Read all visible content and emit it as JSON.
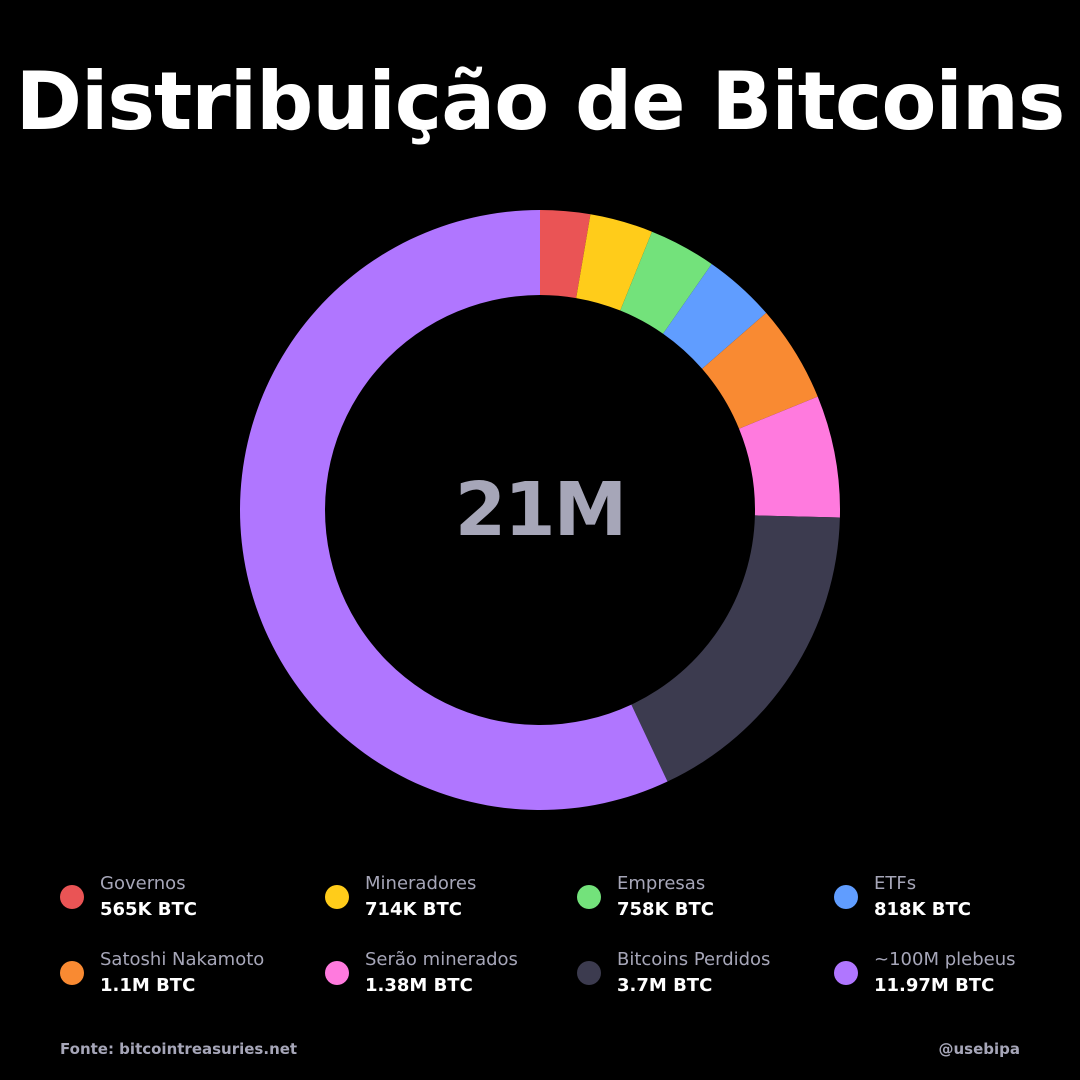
{
  "chart_data": {
    "type": "pie",
    "title": "Distribuição de Bitcoins",
    "center_label": "21M",
    "center_color": "#a6a6b8",
    "slices": [
      {
        "name": "Governos",
        "value": 565000,
        "label": "565K BTC",
        "color": "#ea5455"
      },
      {
        "name": "Mineradores",
        "value": 714000,
        "label": "714K BTC",
        "color": "#ffcc1a"
      },
      {
        "name": "Empresas",
        "value": 758000,
        "label": "758K BTC",
        "color": "#73e27b"
      },
      {
        "name": "ETFs",
        "value": 818000,
        "label": "818K BTC",
        "color": "#609dff"
      },
      {
        "name": "Satoshi Nakamoto",
        "value": 1100000,
        "label": "1.1M BTC",
        "color": "#f98a32"
      },
      {
        "name": "Serão minerados",
        "value": 1380000,
        "label": "1.38M BTC",
        "color": "#ff7ade"
      },
      {
        "name": "Bitcoins Perdidos",
        "value": 3700000,
        "label": "3.7M BTC",
        "color": "#3c3b4f"
      },
      {
        "name": "~100M plebeus",
        "value": 11970000,
        "label": "11.97M BTC",
        "color": "#b076ff"
      }
    ]
  },
  "footer": {
    "source": "Fonte: bitcointreasuries.net",
    "handle": "@usebipa"
  }
}
